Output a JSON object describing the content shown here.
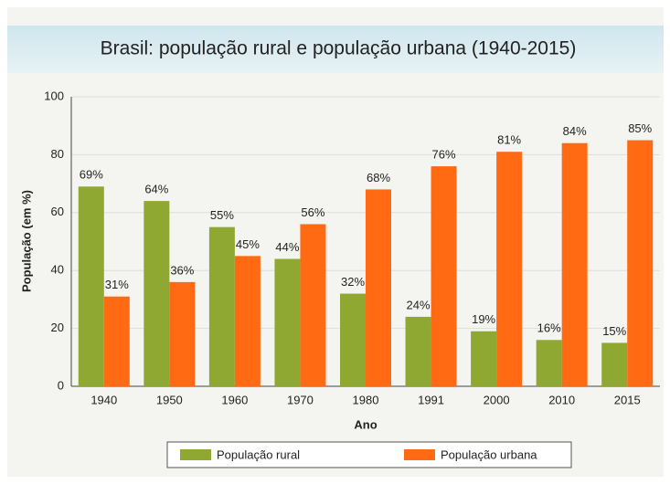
{
  "chart_data": {
    "type": "bar",
    "title": "Brasil: população rural e população urbana (1940-2015)",
    "x_label": "Ano",
    "y_label": "População (em %)",
    "categories": [
      "1940",
      "1950",
      "1960",
      "1970",
      "1980",
      "1991",
      "2000",
      "2010",
      "2015"
    ],
    "series": [
      {
        "name": "População rural",
        "color": "#8fa832",
        "values": [
          69,
          64,
          55,
          44,
          32,
          24,
          19,
          16,
          15
        ],
        "value_labels": [
          "69%",
          "64%",
          "55%",
          "44%",
          "32%",
          "24%",
          "19%",
          "16%",
          "15%"
        ]
      },
      {
        "name": "População urbana",
        "color": "#ff6a13",
        "values": [
          31,
          36,
          45,
          56,
          68,
          76,
          81,
          84,
          85
        ],
        "value_labels": [
          "31%",
          "36%",
          "45%",
          "56%",
          "68%",
          "76%",
          "81%",
          "84%",
          "85%"
        ]
      }
    ],
    "ylim": [
      0,
      100
    ],
    "yticks": [
      0,
      20,
      40,
      60,
      80,
      100
    ],
    "grid": true,
    "legend": "bottom"
  }
}
